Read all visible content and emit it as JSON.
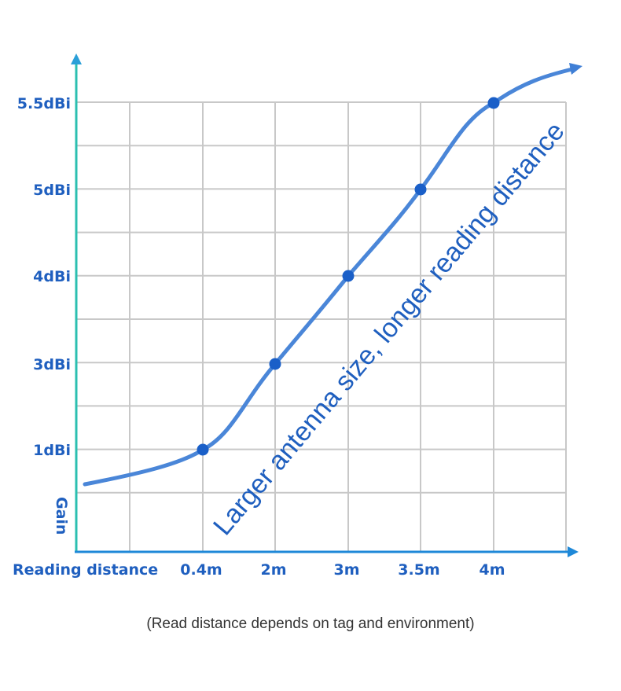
{
  "chart_data": {
    "type": "line",
    "xlabel": "Reading distance",
    "ylabel": "Gain",
    "x_categories": [
      "0.4m",
      "2m",
      "3m",
      "3.5m",
      "4m"
    ],
    "y_ticks": [
      "1dBi",
      "3dBi",
      "4dBi",
      "5dBi",
      "5.5dBi"
    ],
    "points": [
      {
        "x": "0.4m",
        "y": "1dBi"
      },
      {
        "x": "2m",
        "y": "3dBi"
      },
      {
        "x": "3m",
        "y": "4dBi"
      },
      {
        "x": "3.5m",
        "y": "5dBi"
      },
      {
        "x": "4m",
        "y": "5.5dBi"
      }
    ],
    "annotation": "Larger antenna size, longer reading distance",
    "footnote": "(Read distance depends on tag and environment)",
    "grid": true,
    "colors": {
      "line": "#3f7fd6",
      "point": "#1a5fc8",
      "text": "#1f5fbf",
      "y_axis": "#2bbfb0",
      "x_axis": "#1e88d8",
      "grid": "#c8c8c8"
    }
  }
}
